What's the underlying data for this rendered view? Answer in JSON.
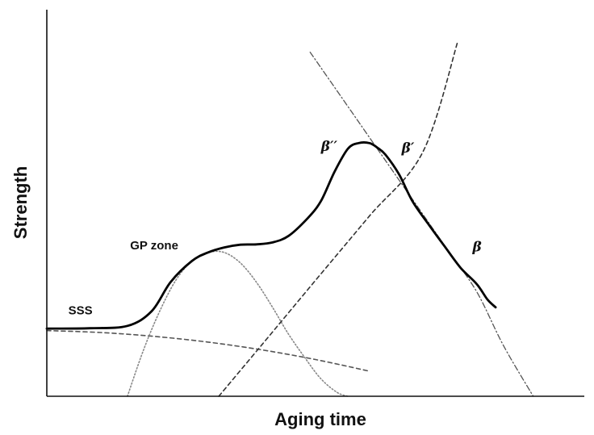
{
  "chart_data": {
    "type": "line",
    "title": "",
    "xlabel": "Aging time",
    "ylabel": "Strength",
    "xlim": [
      0,
      10
    ],
    "ylim": [
      0,
      10
    ],
    "grid": false,
    "legend": "none",
    "annotations": [
      {
        "id": "sss",
        "text": "SSS",
        "x": 0.4,
        "y": 2.12,
        "style": "plain"
      },
      {
        "id": "gp-zone",
        "text": "GP zone",
        "x": 1.55,
        "y": 3.8,
        "style": "plain"
      },
      {
        "id": "beta-double-prime",
        "text": "β′′",
        "x": 5.1,
        "y": 6.35,
        "style": "greek"
      },
      {
        "id": "beta-prime",
        "text": "β′",
        "x": 6.6,
        "y": 6.3,
        "style": "greek"
      },
      {
        "id": "beta",
        "text": "β",
        "x": 7.92,
        "y": 3.75,
        "style": "greek"
      }
    ],
    "series": [
      {
        "id": "total-strength",
        "style": "solid",
        "color": "#000000",
        "x": [
          0.0,
          0.8,
          1.5,
          1.95,
          2.3,
          2.7,
          3.0,
          3.3,
          3.6,
          3.9,
          4.2,
          4.5,
          4.85,
          5.1,
          5.35,
          5.6,
          5.8,
          6.0,
          6.15,
          6.3,
          6.55,
          6.8,
          7.1,
          7.4,
          7.7,
          8.0,
          8.2,
          8.35
        ],
        "y": [
          1.75,
          1.76,
          1.82,
          2.2,
          2.95,
          3.5,
          3.72,
          3.85,
          3.92,
          3.93,
          3.98,
          4.15,
          4.6,
          5.05,
          5.8,
          6.4,
          6.55,
          6.55,
          6.43,
          6.25,
          5.75,
          5.05,
          4.45,
          3.88,
          3.32,
          2.9,
          2.5,
          2.3
        ]
      },
      {
        "id": "sss-contribution",
        "style": "dashed",
        "color": "#555555",
        "x": [
          0.0,
          1.0,
          2.0,
          3.0,
          4.0,
          5.0,
          6.0
        ],
        "y": [
          1.7,
          1.65,
          1.55,
          1.4,
          1.2,
          0.95,
          0.65
        ]
      },
      {
        "id": "gp-zone-contribution",
        "style": "dotted",
        "color": "#888888",
        "x": [
          1.5,
          1.8,
          2.1,
          2.4,
          2.7,
          3.0,
          3.3,
          3.6,
          3.9,
          4.2,
          4.5,
          4.8,
          5.1,
          5.4,
          5.6
        ],
        "y": [
          0.0,
          1.2,
          2.2,
          3.0,
          3.5,
          3.72,
          3.72,
          3.45,
          2.95,
          2.3,
          1.6,
          1.0,
          0.45,
          0.1,
          0.0
        ]
      },
      {
        "id": "beta-double-prime-contribution",
        "style": "dashed",
        "color": "#333333",
        "x": [
          3.2,
          4.0,
          5.0,
          6.0,
          7.0,
          7.65
        ],
        "y": [
          0.0,
          1.33,
          3.0,
          4.66,
          6.33,
          9.2
        ]
      },
      {
        "id": "beta-prime-contribution",
        "style": "dashdot",
        "color": "#555555",
        "x": [
          4.9,
          5.5,
          6.0,
          6.5,
          7.0,
          7.5,
          8.0,
          8.5,
          9.05
        ],
        "y": [
          8.9,
          7.7,
          6.7,
          5.7,
          4.7,
          3.7,
          2.7,
          1.3,
          0.0
        ]
      }
    ]
  }
}
